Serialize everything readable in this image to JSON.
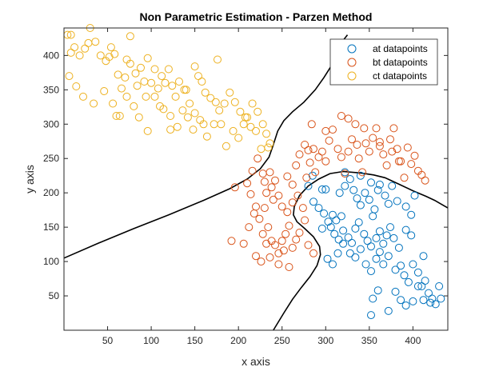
{
  "chart_data": {
    "type": "scatter",
    "title": "Non Parametric Estimation - Parzen Method",
    "xlabel": "x axis",
    "ylabel": "y axis",
    "xlim": [
      0,
      440
    ],
    "ylim": [
      0,
      440
    ],
    "xticks": [
      50,
      100,
      150,
      200,
      250,
      300,
      350,
      400
    ],
    "yticks": [
      50,
      100,
      150,
      200,
      250,
      300,
      350,
      400
    ],
    "legend_position": "top-right",
    "series": [
      {
        "name": "at datapoints",
        "color": "#0072BD",
        "points": [
          [
            280,
            210
          ],
          [
            285,
            225
          ],
          [
            296,
            205
          ],
          [
            300,
            205
          ],
          [
            308,
            168
          ],
          [
            312,
            160
          ],
          [
            318,
            166
          ],
          [
            316,
            200
          ],
          [
            322,
            210
          ],
          [
            322,
            230
          ],
          [
            328,
            220
          ],
          [
            332,
            204
          ],
          [
            336,
            192
          ],
          [
            340,
            182
          ],
          [
            345,
            200
          ],
          [
            350,
            190
          ],
          [
            356,
            176
          ],
          [
            362,
            212
          ],
          [
            368,
            196
          ],
          [
            376,
            210
          ],
          [
            382,
            188
          ],
          [
            392,
            180
          ],
          [
            398,
            168
          ],
          [
            402,
            196
          ],
          [
            286,
            187
          ],
          [
            292,
            178
          ],
          [
            298,
            170
          ],
          [
            303,
            158
          ],
          [
            306,
            150
          ],
          [
            310,
            140
          ],
          [
            315,
            132
          ],
          [
            320,
            145
          ],
          [
            326,
            135
          ],
          [
            330,
            127
          ],
          [
            334,
            148
          ],
          [
            338,
            157
          ],
          [
            344,
            140
          ],
          [
            348,
            130
          ],
          [
            352,
            122
          ],
          [
            358,
            134
          ],
          [
            362,
            144
          ],
          [
            366,
            126
          ],
          [
            370,
            138
          ],
          [
            374,
            150
          ],
          [
            378,
            134
          ],
          [
            384,
            120
          ],
          [
            392,
            146
          ],
          [
            398,
            138
          ],
          [
            302,
            104
          ],
          [
            308,
            96
          ],
          [
            314,
            112
          ],
          [
            320,
            126
          ],
          [
            328,
            112
          ],
          [
            334,
            106
          ],
          [
            340,
            118
          ],
          [
            346,
            96
          ],
          [
            352,
            86
          ],
          [
            358,
            104
          ],
          [
            362,
            114
          ],
          [
            366,
            96
          ],
          [
            372,
            108
          ],
          [
            380,
            88
          ],
          [
            386,
            94
          ],
          [
            390,
            80
          ],
          [
            395,
            70
          ],
          [
            400,
            96
          ],
          [
            406,
            84
          ],
          [
            410,
            64
          ],
          [
            412,
            108
          ],
          [
            414,
            72
          ],
          [
            418,
            54
          ],
          [
            422,
            46
          ],
          [
            426,
            38
          ],
          [
            380,
            56
          ],
          [
            386,
            44
          ],
          [
            392,
            36
          ],
          [
            400,
            42
          ],
          [
            406,
            64
          ],
          [
            412,
            44
          ],
          [
            420,
            40
          ],
          [
            430,
            64
          ],
          [
            432,
            46
          ],
          [
            354,
            46
          ],
          [
            360,
            58
          ],
          [
            352,
            22
          ],
          [
            372,
            28
          ],
          [
            296,
            148
          ],
          [
            340,
            225
          ],
          [
            352,
            215
          ],
          [
            360,
            204
          ],
          [
            354,
            166
          ],
          [
            372,
            184
          ]
        ]
      },
      {
        "name": "bt datapoints",
        "color": "#D95319",
        "points": [
          [
            210,
            214
          ],
          [
            216,
            232
          ],
          [
            222,
            250
          ],
          [
            228,
            228
          ],
          [
            232,
            200
          ],
          [
            238,
            208
          ],
          [
            236,
            230
          ],
          [
            242,
            218
          ],
          [
            246,
            196
          ],
          [
            250,
            180
          ],
          [
            256,
            172
          ],
          [
            262,
            186
          ],
          [
            268,
            196
          ],
          [
            274,
            178
          ],
          [
            278,
            222
          ],
          [
            282,
            244
          ],
          [
            288,
            230
          ],
          [
            292,
            252
          ],
          [
            296,
            260
          ],
          [
            300,
            246
          ],
          [
            304,
            276
          ],
          [
            308,
            292
          ],
          [
            314,
            264
          ],
          [
            318,
            252
          ],
          [
            322,
            228
          ],
          [
            326,
            260
          ],
          [
            330,
            278
          ],
          [
            334,
            300
          ],
          [
            338,
            250
          ],
          [
            342,
            230
          ],
          [
            346,
            272
          ],
          [
            350,
            260
          ],
          [
            354,
            280
          ],
          [
            358,
            294
          ],
          [
            362,
            274
          ],
          [
            366,
            256
          ],
          [
            370,
            240
          ],
          [
            374,
            278
          ],
          [
            378,
            294
          ],
          [
            382,
            264
          ],
          [
            386,
            246
          ],
          [
            390,
            222
          ],
          [
            394,
            266
          ],
          [
            398,
            242
          ],
          [
            402,
            254
          ],
          [
            406,
            232
          ],
          [
            410,
            226
          ],
          [
            414,
            218
          ],
          [
            212,
            150
          ],
          [
            218,
            170
          ],
          [
            224,
            162
          ],
          [
            228,
            140
          ],
          [
            234,
            150
          ],
          [
            238,
            130
          ],
          [
            242,
            124
          ],
          [
            246,
            112
          ],
          [
            250,
            130
          ],
          [
            254,
            140
          ],
          [
            258,
            152
          ],
          [
            262,
            120
          ],
          [
            266,
            132
          ],
          [
            270,
            142
          ],
          [
            276,
            160
          ],
          [
            280,
            124
          ],
          [
            286,
            112
          ],
          [
            220,
            108
          ],
          [
            226,
            100
          ],
          [
            232,
            126
          ],
          [
            236,
            106
          ],
          [
            246,
            96
          ],
          [
            252,
            116
          ],
          [
            258,
            92
          ],
          [
            192,
            130
          ],
          [
            196,
            208
          ],
          [
            206,
            126
          ],
          [
            214,
            198
          ],
          [
            220,
            180
          ],
          [
            230,
            216
          ],
          [
            240,
            190
          ],
          [
            256,
            224
          ],
          [
            262,
            212
          ],
          [
            266,
            240
          ],
          [
            270,
            256
          ],
          [
            276,
            270
          ],
          [
            280,
            262
          ],
          [
            286,
            264
          ],
          [
            284,
            300
          ],
          [
            300,
            290
          ],
          [
            318,
            312
          ],
          [
            326,
            308
          ],
          [
            336,
            270
          ],
          [
            362,
            268
          ],
          [
            376,
            260
          ],
          [
            344,
            294
          ],
          [
            384,
            246
          ],
          [
            230,
            178
          ]
        ]
      },
      {
        "name": "ct datapoints",
        "color": "#EDB120",
        "points": [
          [
            4,
            430
          ],
          [
            8,
            430
          ],
          [
            12,
            412
          ],
          [
            18,
            400
          ],
          [
            24,
            410
          ],
          [
            30,
            440
          ],
          [
            36,
            420
          ],
          [
            42,
            400
          ],
          [
            48,
            392
          ],
          [
            54,
            412
          ],
          [
            58,
            402
          ],
          [
            62,
            372
          ],
          [
            66,
            352
          ],
          [
            70,
            368
          ],
          [
            76,
            388
          ],
          [
            82,
            374
          ],
          [
            88,
            382
          ],
          [
            92,
            362
          ],
          [
            96,
            396
          ],
          [
            100,
            360
          ],
          [
            104,
            380
          ],
          [
            108,
            352
          ],
          [
            112,
            370
          ],
          [
            116,
            360
          ],
          [
            120,
            380
          ],
          [
            124,
            356
          ],
          [
            128,
            340
          ],
          [
            132,
            362
          ],
          [
            138,
            350
          ],
          [
            144,
            330
          ],
          [
            150,
            384
          ],
          [
            154,
            370
          ],
          [
            158,
            362
          ],
          [
            162,
            346
          ],
          [
            168,
            338
          ],
          [
            174,
            332
          ],
          [
            178,
            320
          ],
          [
            184,
            330
          ],
          [
            190,
            346
          ],
          [
            196,
            332
          ],
          [
            202,
            318
          ],
          [
            206,
            300
          ],
          [
            210,
            310
          ],
          [
            216,
            330
          ],
          [
            222,
            318
          ],
          [
            228,
            300
          ],
          [
            232,
            286
          ],
          [
            236,
            272
          ],
          [
            6,
            370
          ],
          [
            14,
            355
          ],
          [
            22,
            340
          ],
          [
            34,
            330
          ],
          [
            46,
            348
          ],
          [
            56,
            330
          ],
          [
            64,
            312
          ],
          [
            72,
            340
          ],
          [
            80,
            326
          ],
          [
            86,
            310
          ],
          [
            94,
            340
          ],
          [
            104,
            340
          ],
          [
            114,
            322
          ],
          [
            122,
            312
          ],
          [
            130,
            296
          ],
          [
            136,
            320
          ],
          [
            142,
            310
          ],
          [
            148,
            292
          ],
          [
            156,
            306
          ],
          [
            164,
            282
          ],
          [
            172,
            300
          ],
          [
            180,
            300
          ],
          [
            186,
            268
          ],
          [
            194,
            290
          ],
          [
            200,
            280
          ],
          [
            208,
            310
          ],
          [
            214,
            296
          ],
          [
            220,
            290
          ],
          [
            226,
            264
          ],
          [
            234,
            266
          ],
          [
            60,
            312
          ],
          [
            72,
            394
          ],
          [
            96,
            290
          ],
          [
            122,
            292
          ],
          [
            150,
            316
          ],
          [
            176,
            394
          ],
          [
            8,
            404
          ],
          [
            28,
            418
          ],
          [
            52,
            398
          ],
          [
            76,
            428
          ],
          [
            110,
            326
          ],
          [
            140,
            350
          ],
          [
            160,
            300
          ],
          [
            84,
            356
          ]
        ]
      }
    ],
    "decision_boundary": [
      [
        [
          0,
          105
        ],
        [
          40,
          127
        ],
        [
          80,
          148
        ],
        [
          120,
          168
        ],
        [
          160,
          189
        ],
        [
          190,
          206
        ],
        [
          210,
          220
        ],
        [
          225,
          235
        ],
        [
          235,
          252
        ],
        [
          240,
          270
        ],
        [
          245,
          290
        ],
        [
          252,
          305
        ],
        [
          262,
          318
        ],
        [
          275,
          332
        ],
        [
          288,
          350
        ],
        [
          298,
          368
        ],
        [
          308,
          388
        ],
        [
          315,
          408
        ],
        [
          320,
          422
        ],
        [
          325,
          430
        ]
      ],
      [
        [
          240,
          0
        ],
        [
          252,
          25
        ],
        [
          262,
          45
        ],
        [
          272,
          62
        ],
        [
          282,
          78
        ],
        [
          290,
          94
        ],
        [
          294,
          110
        ],
        [
          293,
          122
        ],
        [
          286,
          136
        ],
        [
          276,
          148
        ],
        [
          267,
          158
        ],
        [
          263,
          168
        ],
        [
          264,
          180
        ],
        [
          270,
          196
        ],
        [
          280,
          210
        ],
        [
          292,
          220
        ],
        [
          305,
          228
        ],
        [
          320,
          231
        ],
        [
          340,
          229
        ],
        [
          355,
          226
        ],
        [
          368,
          222
        ],
        [
          385,
          212
        ],
        [
          400,
          203
        ],
        [
          415,
          195
        ],
        [
          425,
          189
        ],
        [
          440,
          178
        ]
      ]
    ]
  }
}
